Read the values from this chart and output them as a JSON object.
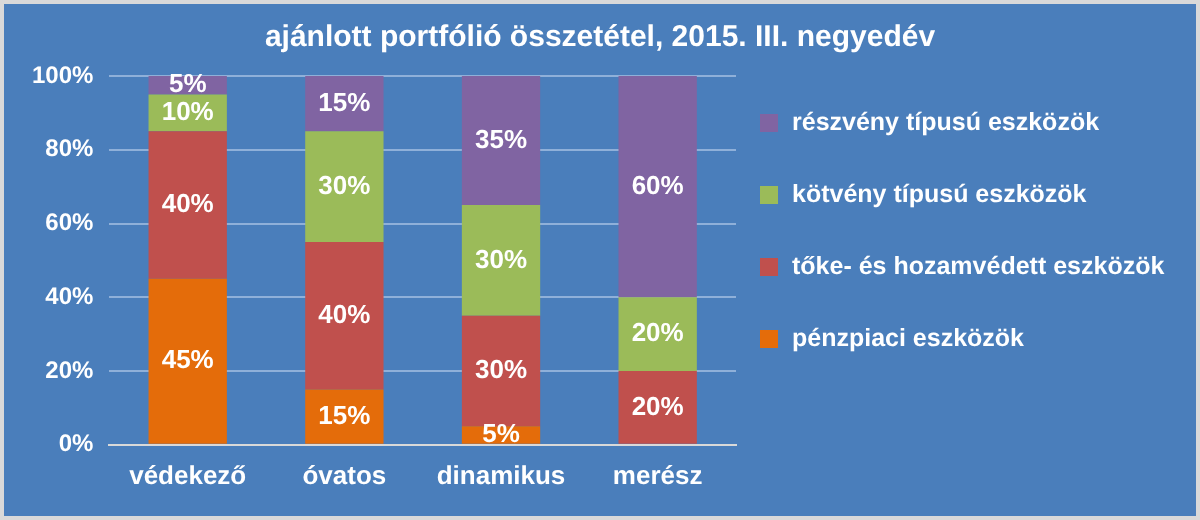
{
  "chart_data": {
    "type": "bar",
    "title": "ajánlott portfólió összetétel, 2015. III. negyedév",
    "categories": [
      "védekező",
      "óvatos",
      "dinamikus",
      "merész"
    ],
    "stacked": true,
    "series": [
      {
        "name": "pénzpiaci eszközök",
        "color": "#e46c0a",
        "values": [
          45,
          15,
          5,
          0
        ],
        "value_labels": [
          "45%",
          "15%",
          "5%",
          null
        ]
      },
      {
        "name": "tőke- és hozamvédett eszközök",
        "color": "#c0504d",
        "values": [
          40,
          40,
          30,
          20
        ],
        "value_labels": [
          "40%",
          "40%",
          "30%",
          "20%"
        ]
      },
      {
        "name": "kötvény típusú eszközök",
        "color": "#9bbb59",
        "values": [
          10,
          30,
          30,
          20
        ],
        "value_labels": [
          "10%",
          "30%",
          "30%",
          "20%"
        ]
      },
      {
        "name": "részvény típusú eszközök",
        "color": "#8064a2",
        "values": [
          5,
          15,
          35,
          60
        ],
        "value_labels": [
          "5%",
          "15%",
          "35%",
          "60%"
        ]
      }
    ],
    "ylim": [
      0,
      100
    ],
    "yticks": [
      {
        "value": 0,
        "label": "0%"
      },
      {
        "value": 20,
        "label": "20%"
      },
      {
        "value": 40,
        "label": "40%"
      },
      {
        "value": 60,
        "label": "60%"
      },
      {
        "value": 80,
        "label": "80%"
      },
      {
        "value": 100,
        "label": "100%"
      }
    ],
    "grid": "y",
    "legend": "right"
  }
}
